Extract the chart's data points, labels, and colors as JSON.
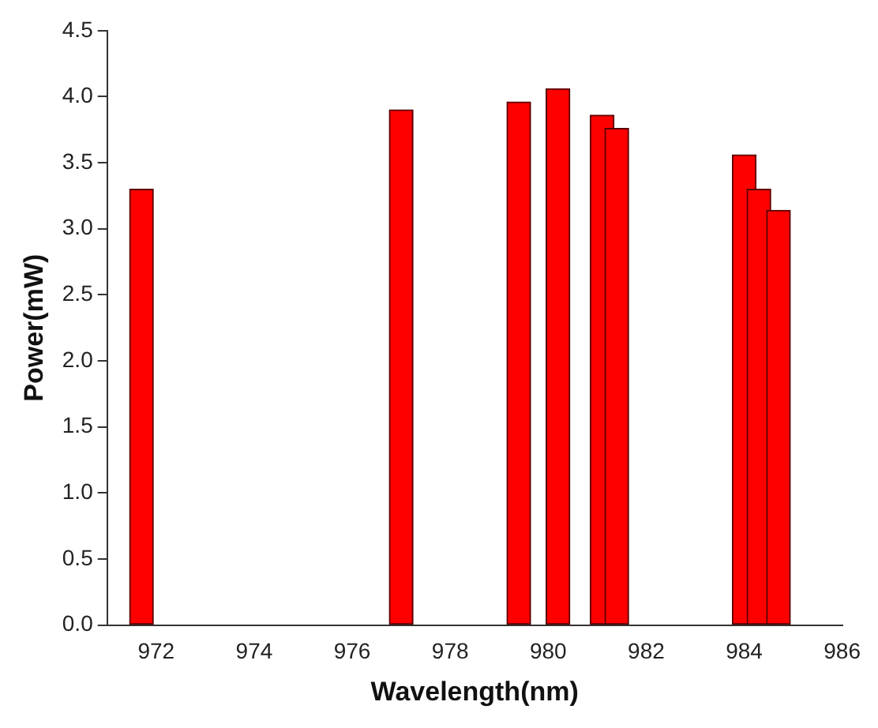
{
  "chart_data": {
    "type": "bar",
    "xlabel": "Wavelength(nm)",
    "ylabel": "Power(mW)",
    "x": [
      971.7,
      977.0,
      979.4,
      980.2,
      981.1,
      981.4,
      984.0,
      984.3,
      984.7
    ],
    "values": [
      3.3,
      3.9,
      3.96,
      4.06,
      3.86,
      3.76,
      3.56,
      3.3,
      3.14
    ],
    "color": "#ff0000",
    "xlim": [
      971,
      986
    ],
    "xticks": [
      972,
      974,
      976,
      978,
      980,
      982,
      984,
      986
    ],
    "ylim": [
      0,
      4.5
    ],
    "yticks": [
      {
        "value": 0,
        "label": "0.0"
      },
      0.5,
      {
        "value": 1,
        "label": "1.0"
      },
      1.5,
      {
        "value": 2,
        "label": "2.0"
      },
      2.5,
      {
        "value": 3,
        "label": "3.0"
      },
      3.5,
      {
        "value": 4,
        "label": "4.0"
      },
      4.5
    ],
    "grid": false,
    "legend": false
  }
}
